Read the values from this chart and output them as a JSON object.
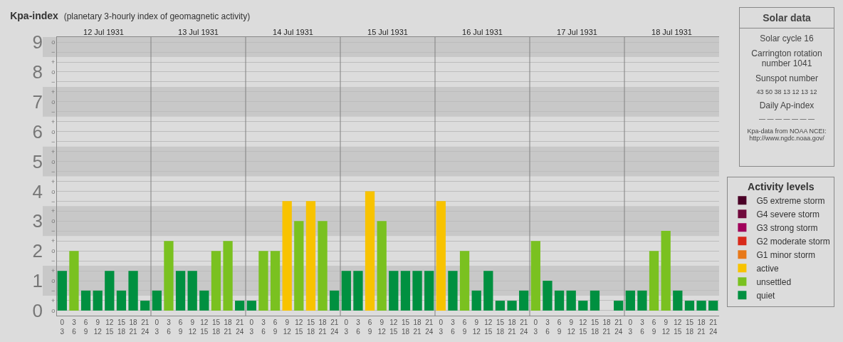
{
  "chart_data": [
    {
      "type": "bar",
      "title": "Kpa-index",
      "subtitle": "(planetary 3-hourly index of geomagnetic activity)",
      "x": [
        "1931-07-12T01:30",
        "1931-07-12T04:30",
        "1931-07-12T07:30",
        "1931-07-12T10:30",
        "1931-07-12T13:30",
        "1931-07-12T16:30",
        "1931-07-12T19:30",
        "1931-07-12T22:30",
        "1931-07-13T01:30",
        "1931-07-13T04:30",
        "1931-07-13T07:30",
        "1931-07-13T10:30",
        "1931-07-13T13:30",
        "1931-07-13T16:30",
        "1931-07-13T19:30",
        "1931-07-13T22:30",
        "1931-07-14T01:30",
        "1931-07-14T04:30",
        "1931-07-14T07:30",
        "1931-07-14T10:30",
        "1931-07-14T13:30",
        "1931-07-14T16:30",
        "1931-07-14T19:30",
        "1931-07-14T22:30",
        "1931-07-15T01:30",
        "1931-07-15T04:30",
        "1931-07-15T07:30",
        "1931-07-15T10:30",
        "1931-07-15T13:30",
        "1931-07-15T16:30",
        "1931-07-15T19:30",
        "1931-07-15T22:30",
        "1931-07-16T01:30",
        "1931-07-16T04:30",
        "1931-07-16T07:30",
        "1931-07-16T10:30",
        "1931-07-16T13:30",
        "1931-07-16T16:30",
        "1931-07-16T19:30",
        "1931-07-16T22:30",
        "1931-07-17T01:30",
        "1931-07-17T04:30",
        "1931-07-17T07:30",
        "1931-07-17T10:30",
        "1931-07-17T13:30",
        "1931-07-17T16:30",
        "1931-07-17T19:30",
        "1931-07-17T22:30",
        "1931-07-18T01:30",
        "1931-07-18T04:30",
        "1931-07-18T07:30",
        "1931-07-18T10:30",
        "1931-07-18T13:30",
        "1931-07-18T16:30",
        "1931-07-18T19:30",
        "1931-07-18T22:30"
      ],
      "xlim": [
        "1931-07-12T00:00",
        "1931-07-19T00:00"
      ],
      "xticks": [
        {
          "value": "1931-07-12T01:30",
          "label": "0\n3"
        },
        {
          "value": "1931-07-12T04:30",
          "label": "3\n6"
        },
        {
          "value": "1931-07-12T07:30",
          "label": "6\n9"
        },
        {
          "value": "1931-07-12T10:30",
          "label": "9\n12"
        },
        {
          "value": "1931-07-12T13:30",
          "label": "12\n15"
        },
        {
          "value": "1931-07-12T16:30",
          "label": "15\n18"
        },
        {
          "value": "1931-07-12T19:30",
          "label": "18\n21"
        },
        {
          "value": "1931-07-12T22:30",
          "label": "21\n24"
        },
        {
          "value": "1931-07-13T01:30",
          "label": "0\n3"
        },
        {
          "value": "1931-07-13T04:30",
          "label": "3\n6"
        },
        {
          "value": "1931-07-13T07:30",
          "label": "6\n9"
        },
        {
          "value": "1931-07-13T10:30",
          "label": "9\n12"
        },
        {
          "value": "1931-07-13T13:30",
          "label": "12\n15"
        },
        {
          "value": "1931-07-13T16:30",
          "label": "15\n18"
        },
        {
          "value": "1931-07-13T19:30",
          "label": "18\n21"
        },
        {
          "value": "1931-07-13T22:30",
          "label": "21\n24"
        },
        {
          "value": "1931-07-14T01:30",
          "label": "0\n3"
        },
        {
          "value": "1931-07-14T04:30",
          "label": "3\n6"
        },
        {
          "value": "1931-07-14T07:30",
          "label": "6\n9"
        },
        {
          "value": "1931-07-14T10:30",
          "label": "9\n12"
        },
        {
          "value": "1931-07-14T13:30",
          "label": "12\n15"
        },
        {
          "value": "1931-07-14T16:30",
          "label": "15\n18"
        },
        {
          "value": "1931-07-14T19:30",
          "label": "18\n21"
        },
        {
          "value": "1931-07-14T22:30",
          "label": "21\n24"
        },
        {
          "value": "1931-07-15T01:30",
          "label": "0\n3"
        },
        {
          "value": "1931-07-15T04:30",
          "label": "3\n6"
        },
        {
          "value": "1931-07-15T07:30",
          "label": "6\n9"
        },
        {
          "value": "1931-07-15T10:30",
          "label": "9\n12"
        },
        {
          "value": "1931-07-15T13:30",
          "label": "12\n15"
        },
        {
          "value": "1931-07-15T16:30",
          "label": "15\n18"
        },
        {
          "value": "1931-07-15T19:30",
          "label": "18\n21"
        },
        {
          "value": "1931-07-15T22:30",
          "label": "21\n24"
        },
        {
          "value": "1931-07-16T01:30",
          "label": "0\n3"
        },
        {
          "value": "1931-07-16T04:30",
          "label": "3\n6"
        },
        {
          "value": "1931-07-16T07:30",
          "label": "6\n9"
        },
        {
          "value": "1931-07-16T10:30",
          "label": "9\n12"
        },
        {
          "value": "1931-07-16T13:30",
          "label": "12\n15"
        },
        {
          "value": "1931-07-16T16:30",
          "label": "15\n18"
        },
        {
          "value": "1931-07-16T19:30",
          "label": "18\n21"
        },
        {
          "value": "1931-07-16T22:30",
          "label": "21\n24"
        },
        {
          "value": "1931-07-17T01:30",
          "label": "0\n3"
        },
        {
          "value": "1931-07-17T04:30",
          "label": "3\n6"
        },
        {
          "value": "1931-07-17T07:30",
          "label": "6\n9"
        },
        {
          "value": "1931-07-17T10:30",
          "label": "9\n12"
        },
        {
          "value": "1931-07-17T13:30",
          "label": "12\n15"
        },
        {
          "value": "1931-07-17T16:30",
          "label": "15\n18"
        },
        {
          "value": "1931-07-17T19:30",
          "label": "18\n21"
        },
        {
          "value": "1931-07-17T22:30",
          "label": "21\n24"
        },
        {
          "value": "1931-07-18T01:30",
          "label": "0\n3"
        },
        {
          "value": "1931-07-18T04:30",
          "label": "3\n6"
        },
        {
          "value": "1931-07-18T07:30",
          "label": "6\n9"
        },
        {
          "value": "1931-07-18T10:30",
          "label": "9\n12"
        },
        {
          "value": "1931-07-18T13:30",
          "label": "12\n15"
        },
        {
          "value": "1931-07-18T16:30",
          "label": "15\n18"
        },
        {
          "value": "1931-07-18T19:30",
          "label": "18\n21"
        },
        {
          "value": "1931-07-18T22:30",
          "label": "21\n24"
        }
      ],
      "x2lim": [
        "1931-07-12T00:00",
        "1931-07-19T00:00"
      ],
      "x2ticks": [
        {
          "value": "1931-07-12T12:00",
          "label": "12 Jul 1931"
        },
        {
          "value": "1931-07-13T12:00",
          "label": "13 Jul 1931"
        },
        {
          "value": "1931-07-14T12:00",
          "label": "14 Jul 1931"
        },
        {
          "value": "1931-07-15T12:00",
          "label": "15 Jul 1931"
        },
        {
          "value": "1931-07-16T12:00",
          "label": "16 Jul 1931"
        },
        {
          "value": "1931-07-17T12:00",
          "label": "17 Jul 1931"
        },
        {
          "value": "1931-07-18T12:00",
          "label": "18 Jul 1931"
        }
      ],
      "ylim": [
        -0.17,
        9.17
      ],
      "yticks": [
        0,
        1,
        2,
        3,
        4,
        5,
        6,
        7,
        8,
        9
      ],
      "y2_categories": [
        "o",
        "−",
        "+",
        "o",
        "−",
        "+",
        "o",
        "−",
        "+",
        "o",
        "−",
        "+",
        "o",
        "−",
        "+",
        "o",
        "−",
        "+",
        "o",
        "−",
        "+",
        "o",
        "−",
        "+",
        "o",
        "−",
        "+",
        "o"
      ],
      "grid": "y",
      "legend": "right",
      "legend_title": "Activity levels",
      "bands": [
        {
          "axis": "y",
          "from": 0.5,
          "to": 1.5,
          "color": "#c8c8c8"
        },
        {
          "axis": "y",
          "from": 2.5,
          "to": 3.5,
          "color": "#c8c8c8"
        },
        {
          "axis": "y",
          "from": 4.5,
          "to": 5.5,
          "color": "#c8c8c8"
        },
        {
          "axis": "y",
          "from": 6.5,
          "to": 7.5,
          "color": "#c8c8c8"
        },
        {
          "axis": "y",
          "from": 8.5,
          "to": 9.17,
          "color": "#c8c8c8"
        }
      ],
      "ref_lines": [
        {
          "axis": "x",
          "value": "1931-07-13T00:00",
          "color": "#808080"
        },
        {
          "axis": "x",
          "value": "1931-07-14T00:00",
          "color": "#808080"
        },
        {
          "axis": "x",
          "value": "1931-07-15T00:00",
          "color": "#808080"
        },
        {
          "axis": "x",
          "value": "1931-07-16T00:00",
          "color": "#808080"
        },
        {
          "axis": "x",
          "value": "1931-07-17T00:00",
          "color": "#808080"
        },
        {
          "axis": "x",
          "value": "1931-07-18T00:00",
          "color": "#808080"
        }
      ],
      "series": [
        {
          "name": "G5 extreme storm",
          "color": "#4a0026",
          "values": [
            null,
            null,
            null,
            null,
            null,
            null,
            null,
            null,
            null,
            null,
            null,
            null,
            null,
            null,
            null,
            null,
            null,
            null,
            null,
            null,
            null,
            null,
            null,
            null,
            null,
            null,
            null,
            null,
            null,
            null,
            null,
            null,
            null,
            null,
            null,
            null,
            null,
            null,
            null,
            null,
            null,
            null,
            null,
            null,
            null,
            null,
            null,
            null,
            null,
            null,
            null,
            null,
            null,
            null,
            null,
            null
          ]
        },
        {
          "name": "G4 severe storm",
          "color": "#700a3c",
          "values": [
            null,
            null,
            null,
            null,
            null,
            null,
            null,
            null,
            null,
            null,
            null,
            null,
            null,
            null,
            null,
            null,
            null,
            null,
            null,
            null,
            null,
            null,
            null,
            null,
            null,
            null,
            null,
            null,
            null,
            null,
            null,
            null,
            null,
            null,
            null,
            null,
            null,
            null,
            null,
            null,
            null,
            null,
            null,
            null,
            null,
            null,
            null,
            null,
            null,
            null,
            null,
            null,
            null,
            null,
            null,
            null
          ]
        },
        {
          "name": "G3 strong storm",
          "color": "#a0005a",
          "values": [
            null,
            null,
            null,
            null,
            null,
            null,
            null,
            null,
            null,
            null,
            null,
            null,
            null,
            null,
            null,
            null,
            null,
            null,
            null,
            null,
            null,
            null,
            null,
            null,
            null,
            null,
            null,
            null,
            null,
            null,
            null,
            null,
            null,
            null,
            null,
            null,
            null,
            null,
            null,
            null,
            null,
            null,
            null,
            null,
            null,
            null,
            null,
            null,
            null,
            null,
            null,
            null,
            null,
            null,
            null,
            null
          ]
        },
        {
          "name": "G2 moderate storm",
          "color": "#d82a1a",
          "values": [
            null,
            null,
            null,
            null,
            null,
            null,
            null,
            null,
            null,
            null,
            null,
            null,
            null,
            null,
            null,
            null,
            null,
            null,
            null,
            null,
            null,
            null,
            null,
            null,
            null,
            null,
            null,
            null,
            null,
            null,
            null,
            null,
            null,
            null,
            null,
            null,
            null,
            null,
            null,
            null,
            null,
            null,
            null,
            null,
            null,
            null,
            null,
            null,
            null,
            null,
            null,
            null,
            null,
            null,
            null,
            null
          ]
        },
        {
          "name": "G1 minor storm",
          "color": "#e87818",
          "values": [
            null,
            null,
            null,
            null,
            null,
            null,
            null,
            null,
            null,
            null,
            null,
            null,
            null,
            null,
            null,
            null,
            null,
            null,
            null,
            null,
            null,
            null,
            null,
            null,
            null,
            null,
            null,
            null,
            null,
            null,
            null,
            null,
            null,
            null,
            null,
            null,
            null,
            null,
            null,
            null,
            null,
            null,
            null,
            null,
            null,
            null,
            null,
            null,
            null,
            null,
            null,
            null,
            null,
            null,
            null,
            null
          ]
        },
        {
          "name": "active",
          "color": "#f8c300",
          "values": [
            null,
            null,
            null,
            null,
            null,
            null,
            null,
            null,
            null,
            null,
            null,
            null,
            null,
            null,
            null,
            null,
            null,
            null,
            null,
            3.67,
            null,
            3.67,
            null,
            null,
            null,
            null,
            4,
            null,
            null,
            null,
            null,
            null,
            3.67,
            null,
            null,
            null,
            null,
            null,
            null,
            null,
            null,
            null,
            null,
            null,
            null,
            null,
            null,
            null,
            null,
            null,
            null,
            null,
            null,
            null,
            null,
            null
          ]
        },
        {
          "name": "unsettled",
          "color": "#7ac120",
          "values": [
            null,
            2,
            null,
            null,
            null,
            null,
            null,
            null,
            null,
            2.33,
            null,
            null,
            null,
            2,
            2.33,
            null,
            null,
            2,
            2,
            null,
            3,
            null,
            3,
            null,
            null,
            null,
            null,
            3,
            null,
            null,
            null,
            null,
            null,
            null,
            2,
            null,
            null,
            null,
            null,
            null,
            2.33,
            null,
            null,
            null,
            null,
            null,
            null,
            null,
            null,
            null,
            2,
            2.67,
            null,
            null,
            null,
            null
          ]
        },
        {
          "name": "quiet",
          "color": "#009040",
          "values": [
            1.33,
            null,
            0.67,
            0.67,
            1.33,
            0.67,
            1.33,
            0.33,
            0.67,
            null,
            1.33,
            1.33,
            0.67,
            null,
            null,
            0.33,
            0.33,
            null,
            null,
            null,
            null,
            null,
            null,
            0.67,
            1.33,
            1.33,
            null,
            null,
            1.33,
            1.33,
            1.33,
            1.33,
            null,
            1.33,
            null,
            0.67,
            1.33,
            0.33,
            0.33,
            0.67,
            null,
            1,
            0.67,
            0.67,
            0.33,
            0.67,
            0,
            0.33,
            0.67,
            0.67,
            null,
            null,
            0.67,
            0.33,
            0.33,
            0.33
          ]
        }
      ]
    },
    {
      "type": "other",
      "title": "Solar data",
      "annotations": [
        "Solar cycle 16",
        "Carrington rotation number 1041",
        "Sunspot number",
        "43   50   38   13   12   13   12",
        "Daily Ap-index",
        "—   —   —   —   —   —   —",
        "Kpa-data from NOAA NCEI: http://www.ngdc.noaa.gov/"
      ]
    }
  ]
}
